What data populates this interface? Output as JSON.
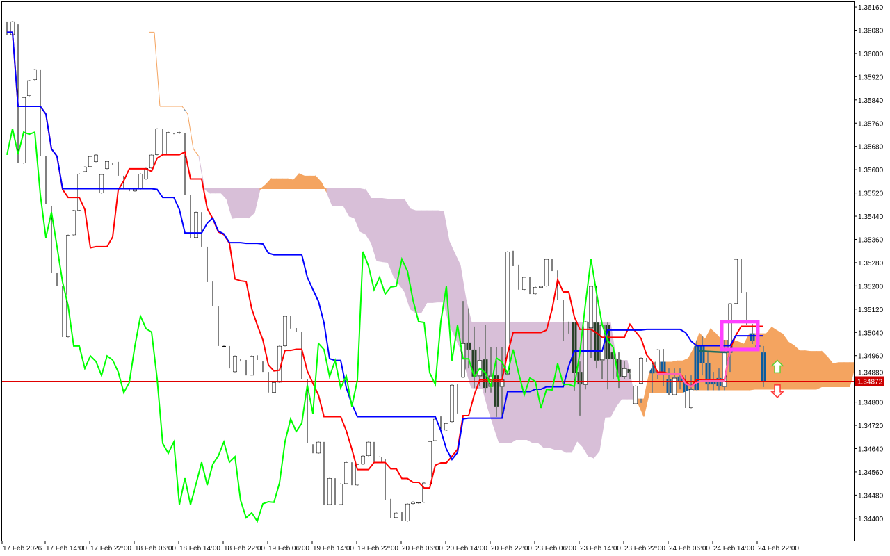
{
  "chart_data": {
    "type": "candlestick",
    "indicator": "Ichimoku Kinko Hyo",
    "y_ticks": [
      "1.36160",
      "1.36080",
      "1.36000",
      "1.35920",
      "1.35840",
      "1.35760",
      "1.35680",
      "1.35600",
      "1.35520",
      "1.35440",
      "1.35360",
      "1.35280",
      "1.35200",
      "1.35120",
      "1.35040",
      "1.34960",
      "1.34880",
      "1.34800",
      "1.34720",
      "1.34640",
      "1.34560",
      "1.34480",
      "1.34400"
    ],
    "ylim": [
      1.3433,
      1.36184
    ],
    "x_ticks": [
      "17 Feb 2026",
      "17 Feb 14:00",
      "17 Feb 22:00",
      "18 Feb 06:00",
      "18 Feb 14:00",
      "18 Feb 22:00",
      "19 Feb 06:00",
      "19 Feb 14:00",
      "19 Feb 22:00",
      "20 Feb 06:00",
      "20 Feb 14:00",
      "20 Feb 22:00",
      "23 Feb 06:00",
      "23 Feb 14:00",
      "23 Feb 22:00",
      "24 Feb 06:00",
      "24 Feb 14:00",
      "24 Feb 22:00"
    ],
    "current_price": 1.34872,
    "current_price_label": "1.34872",
    "colors": {
      "bull_body": "#ffffff",
      "bear_body": "#000000",
      "tenkan": "#ff0000",
      "kijun": "#0000ff",
      "chikou": "#00ff00",
      "cloud_bullish": "#f4a460",
      "cloud_bearish": "#d8bfd8",
      "price_line": "#e00000",
      "price_tag": "#cc0000",
      "signal_line": "#ff5fb4",
      "signal_line_2": "#1f6b5f",
      "highlight_box": "#ff40ff",
      "up_arrow": "#66cc33",
      "down_arrow": "#ff3030"
    },
    "candles_ohlc": [
      [
        1.3611,
        1.36117,
        1.36029,
        1.36064
      ],
      [
        1.36064,
        1.36117,
        1.36052,
        1.3611
      ],
      [
        1.361,
        1.36112,
        1.35519,
        1.35622
      ],
      [
        1.35622,
        1.35897,
        1.3561,
        1.35849
      ],
      [
        1.35854,
        1.35969,
        1.35837,
        1.35907
      ],
      [
        1.35909,
        1.36057,
        1.35885,
        1.35945
      ],
      [
        1.35945,
        1.35974,
        1.35598,
        1.35646
      ],
      [
        1.35646,
        1.3571,
        1.35466,
        1.35483
      ],
      [
        1.35476,
        1.35497,
        1.35227,
        1.35244
      ],
      [
        1.35244,
        1.35251,
        1.35175,
        1.35199
      ],
      [
        1.35199,
        1.35251,
        1.34952,
        1.35024
      ],
      [
        1.35024,
        1.35411,
        1.35019,
        1.35375
      ],
      [
        1.35375,
        1.35497,
        1.35342,
        1.3546
      ],
      [
        1.3546,
        1.35605,
        1.35406,
        1.35586
      ],
      [
        1.35593,
        1.35639,
        1.35569,
        1.3561
      ],
      [
        1.3561,
        1.35686,
        1.35591,
        1.35646
      ],
      [
        1.35627,
        1.35718,
        1.35598,
        1.35651
      ],
      [
        1.35519,
        1.35718,
        1.35488,
        1.35584
      ],
      [
        1.35603,
        1.35698,
        1.35562,
        1.35629
      ],
      [
        1.35624,
        1.35658,
        1.35605,
        1.35615
      ],
      [
        1.35627,
        1.35639,
        1.35562,
        1.35579
      ],
      [
        1.35579,
        1.35598,
        1.35509,
        1.35538
      ],
      [
        1.35538,
        1.35557,
        1.3549,
        1.35526
      ],
      [
        1.35526,
        1.35557,
        1.3549,
        1.35533
      ],
      [
        1.35533,
        1.35591,
        1.35531,
        1.35586
      ],
      [
        1.35567,
        1.35646,
        1.35526,
        1.35605
      ],
      [
        1.35605,
        1.35658,
        1.35562,
        1.35651
      ],
      [
        1.35651,
        1.35789,
        1.35648,
        1.35741
      ],
      [
        1.35741,
        1.35813,
        1.35646,
        1.35653
      ],
      [
        1.35653,
        1.35741,
        1.35646,
        1.35729
      ],
      [
        1.35727,
        1.35744,
        1.35694,
        1.35722
      ],
      [
        1.35725,
        1.35797,
        1.35653,
        1.35729
      ],
      [
        1.35727,
        1.35808,
        1.35509,
        1.35514
      ],
      [
        1.35514,
        1.35562,
        1.35323,
        1.35366
      ],
      [
        1.35366,
        1.35533,
        1.35352,
        1.35454
      ],
      [
        1.35454,
        1.3555,
        1.35328,
        1.35335
      ],
      [
        1.35335,
        1.35363,
        1.3512,
        1.35213
      ],
      [
        1.35215,
        1.35251,
        1.35055,
        1.35131
      ],
      [
        1.35129,
        1.35153,
        1.34964,
        1.34993
      ],
      [
        1.34993,
        1.35043,
        1.34945,
        1.34993
      ],
      [
        1.34993,
        1.35014,
        1.34885,
        1.34916
      ],
      [
        1.34904,
        1.34974,
        1.34892,
        1.34959
      ],
      [
        1.34949,
        1.34964,
        1.34928,
        1.3494
      ],
      [
        1.34945,
        1.34993,
        1.3488,
        1.34892
      ],
      [
        1.34892,
        1.34993,
        1.34892,
        1.34959
      ],
      [
        1.34961,
        1.34964,
        1.34911,
        1.34945
      ],
      [
        1.3494,
        1.34974,
        1.34876,
        1.34904
      ],
      [
        1.34904,
        1.34923,
        1.34813,
        1.34833
      ],
      [
        1.34833,
        1.34873,
        1.34801,
        1.34868
      ],
      [
        1.34868,
        1.35019,
        1.34844,
        1.34993
      ],
      [
        1.34993,
        1.35155,
        1.34945,
        1.35096
      ],
      [
        1.35096,
        1.35155,
        1.35019,
        1.35053
      ],
      [
        1.35055,
        1.35163,
        1.34947,
        1.35041
      ],
      [
        1.35041,
        1.35067,
        1.34844,
        1.3488
      ],
      [
        1.3488,
        1.3494,
        1.34651,
        1.34658
      ],
      [
        1.34655,
        1.34737,
        1.34567,
        1.34624
      ],
      [
        1.34624,
        1.34689,
        1.34486,
        1.34663
      ],
      [
        1.34663,
        1.34665,
        1.34337,
        1.34447
      ],
      [
        1.34447,
        1.34734,
        1.34409,
        1.34538
      ],
      [
        1.34538,
        1.34574,
        1.3439,
        1.34447
      ],
      [
        1.34447,
        1.34557,
        1.34385,
        1.34519
      ],
      [
        1.34519,
        1.34653,
        1.3451,
        1.34593
      ],
      [
        1.34593,
        1.34799,
        1.34469,
        1.34514
      ],
      [
        1.34514,
        1.34732,
        1.34498,
        1.34586
      ],
      [
        1.34586,
        1.34732,
        1.34577,
        1.34615
      ],
      [
        1.34615,
        1.34703,
        1.34577,
        1.34663
      ],
      [
        1.34663,
        1.34706,
        1.34593,
        1.34593
      ],
      [
        1.34593,
        1.34634,
        1.34545,
        1.34612
      ],
      [
        1.34605,
        1.34617,
        1.34409,
        1.34462
      ],
      [
        1.34467,
        1.34474,
        1.34342,
        1.34402
      ],
      [
        1.34402,
        1.34457,
        1.34371,
        1.34419
      ],
      [
        1.34421,
        1.34457,
        1.34378,
        1.3439
      ],
      [
        1.3439,
        1.34493,
        1.34366,
        1.3445
      ],
      [
        1.3445,
        1.34493,
        1.34414,
        1.34457
      ],
      [
        1.34452,
        1.34667,
        1.34438,
        1.34455
      ],
      [
        1.34455,
        1.34646,
        1.34359,
        1.34522
      ],
      [
        1.34517,
        1.34665,
        1.34502,
        1.34665
      ],
      [
        1.34667,
        1.34823,
        1.34612,
        1.34742
      ],
      [
        1.34751,
        1.34787,
        1.34612,
        1.34699
      ],
      [
        1.34703,
        1.34797,
        1.34682,
        1.34727
      ],
      [
        1.34732,
        1.34868,
        1.34648,
        1.34859
      ],
      [
        1.34861,
        1.34916,
        1.34653,
        1.34761
      ],
      [
        1.34885,
        1.35148,
        1.34605,
        1.35002
      ],
      [
        1.35005,
        1.35146,
        1.34916,
        1.34981
      ],
      [
        1.34981,
        1.3506,
        1.34849,
        1.34888
      ],
      [
        1.3489,
        1.34988,
        1.34856,
        1.34943
      ],
      [
        1.34947,
        1.35065,
        1.34833,
        1.34849
      ],
      [
        1.34854,
        1.34988,
        1.34833,
        1.3489
      ],
      [
        1.34892,
        1.34988,
        1.34749,
        1.34785
      ],
      [
        1.34854,
        1.34988,
        1.34749,
        1.34876
      ],
      [
        1.34897,
        1.3533,
        1.34892,
        1.35318
      ],
      [
        1.35321,
        1.3533,
        1.35191,
        1.35268
      ],
      [
        1.35273,
        1.35287,
        1.35151,
        1.35187
      ],
      [
        1.35187,
        1.35282,
        1.35155,
        1.3523
      ],
      [
        1.3523,
        1.35232,
        1.35103,
        1.35172
      ],
      [
        1.35172,
        1.35203,
        1.3512,
        1.35196
      ],
      [
        1.35194,
        1.35208,
        1.3512,
        1.35199
      ],
      [
        1.35199,
        1.35347,
        1.35184,
        1.35292
      ],
      [
        1.35294,
        1.35323,
        1.35108,
        1.35251
      ],
      [
        1.35253,
        1.3528,
        1.35096,
        1.35151
      ],
      [
        1.35153,
        1.35167,
        1.35012,
        1.35077
      ],
      [
        1.35077,
        1.3512,
        1.35036,
        1.35074
      ],
      [
        1.35074,
        1.35084,
        1.3484,
        1.34901
      ],
      [
        1.34904,
        1.3494,
        1.34754,
        1.34861
      ],
      [
        1.34861,
        1.35096,
        1.34844,
        1.35077
      ],
      [
        1.35055,
        1.35292,
        1.34952,
        1.35199
      ],
      [
        1.35201,
        1.35244,
        1.34916,
        1.34943
      ],
      [
        1.34945,
        1.35131,
        1.3488,
        1.35065
      ],
      [
        1.35065,
        1.35084,
        1.34844,
        1.34949
      ],
      [
        1.34971,
        1.34988,
        1.3488,
        1.34949
      ],
      [
        1.34971,
        1.34988,
        1.34849,
        1.34888
      ],
      [
        1.34888,
        1.3494,
        1.3488,
        1.34916
      ],
      [
        1.34914,
        1.3494,
        1.3488,
        1.34901
      ],
      [
        1.34794,
        1.34892,
        1.34794,
        1.34856
      ],
      [
        1.34864,
        1.34993,
        1.34797,
        1.34952
      ],
      [
        1.34952,
        1.34988,
        1.34892,
        1.34938
      ],
      [
        1.3494,
        1.34988,
        1.34833,
        1.34899
      ],
      [
        1.34904,
        1.35012,
        1.3488,
        1.34981
      ],
      [
        1.34983,
        1.35012,
        1.34856,
        1.34899
      ],
      [
        1.3488,
        1.34916,
        1.34785,
        1.34825
      ],
      [
        1.34825,
        1.34916,
        1.34797,
        1.34883
      ],
      [
        1.34888,
        1.34916,
        1.34844,
        1.34871
      ],
      [
        1.34868,
        1.34892,
        1.34732,
        1.3478
      ],
      [
        1.3478,
        1.34892,
        1.34696,
        1.34844
      ],
      [
        1.34993,
        1.3506,
        1.34833,
        1.34842
      ],
      [
        1.34995,
        1.3506,
        1.34892,
        1.34933
      ],
      [
        1.34933,
        1.34976,
        1.34773,
        1.34861
      ],
      [
        1.3488,
        1.34904,
        1.34778,
        1.34861
      ],
      [
        1.34883,
        1.34916,
        1.34761,
        1.34854
      ],
      [
        1.34854,
        1.3506,
        1.34797,
        1.34971
      ],
      [
        1.34971,
        1.35268,
        1.34904,
        1.35139
      ],
      [
        1.35139,
        1.35361,
        1.35131,
        1.35292
      ],
      [
        1.35292,
        1.35304,
        1.35167,
        1.35175
      ],
      [
        1.35179,
        1.35184,
        1.3506,
        1.35067
      ],
      [
        1.35069,
        1.3512,
        1.35,
        1.35012
      ],
      [
        1.34995,
        1.35012,
        1.34976,
        1.34988
      ],
      [
        1.34971,
        1.34993,
        1.34852,
        1.34873
      ]
    ],
    "signal_line": [
      [
        116.9,
        1.34897
      ],
      [
        121,
        1.34897
      ],
      [
        122,
        1.34864
      ],
      [
        123,
        1.34854
      ],
      [
        124,
        1.34868
      ],
      [
        125,
        1.34873
      ],
      [
        129,
        1.34873
      ],
      [
        130,
        1.34976
      ]
    ],
    "signal_line_2": [
      [
        124.4,
        1.34976
      ],
      [
        129.4,
        1.34971
      ],
      [
        130.3,
        1.34988
      ]
    ],
    "highlight_box": {
      "bars": [
        129,
        135
      ],
      "prices": [
        1.35077,
        1.34981
      ]
    },
    "arrows": [
      {
        "direction": "up",
        "bar": 138.5,
        "price": 1.3492
      },
      {
        "direction": "down",
        "bar": 138.5,
        "price": 1.3484
      }
    ]
  }
}
